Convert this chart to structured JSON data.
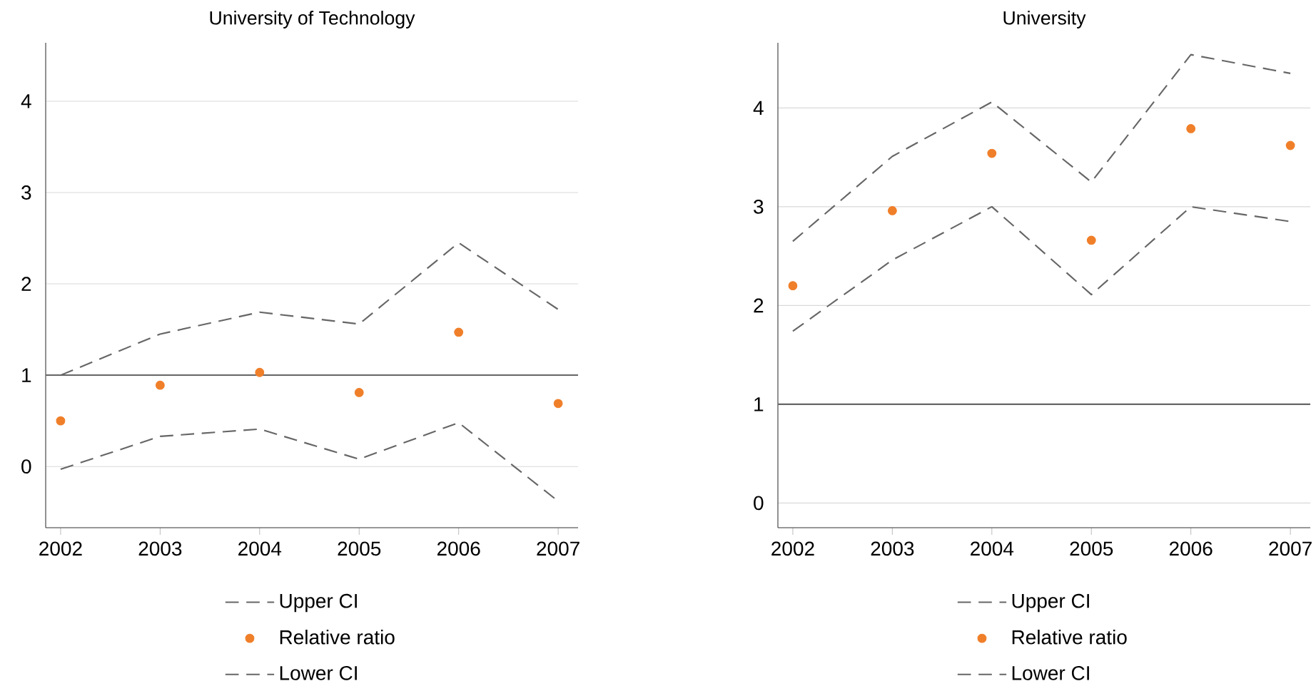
{
  "chart_data": [
    {
      "type": "line",
      "title": "University of Technology",
      "x": [
        2002,
        2003,
        2004,
        2005,
        2006,
        2007
      ],
      "xlim": [
        2001.85,
        2007.2
      ],
      "xticks": [
        2002,
        2003,
        2004,
        2005,
        2006,
        2007
      ],
      "ylim": [
        -0.67,
        4.64
      ],
      "yticks": [
        0,
        1,
        2,
        3,
        4
      ],
      "grid": "y",
      "legend": "bottom",
      "series": [
        {
          "name": "Upper CI",
          "color": "#666666",
          "line_style": "dashed",
          "marker": "none",
          "values": [
            1.0,
            1.45,
            1.69,
            1.56,
            2.45,
            1.72
          ]
        },
        {
          "name": "Relative ratio",
          "type": "scatter",
          "color": "#f07f2a",
          "marker": "circle",
          "values": [
            0.5,
            0.89,
            1.03,
            0.81,
            1.47,
            0.69
          ]
        },
        {
          "name": "Lower CI",
          "color": "#666666",
          "line_style": "dashed",
          "marker": "none",
          "values": [
            -0.03,
            0.33,
            0.41,
            0.08,
            0.48,
            -0.38
          ]
        }
      ],
      "ref_lines": [
        {
          "axis": "y",
          "value": 1,
          "color": "#666666"
        }
      ]
    },
    {
      "type": "line",
      "title": "University",
      "x": [
        2002,
        2003,
        2004,
        2005,
        2006,
        2007
      ],
      "xlim": [
        2001.85,
        2007.2
      ],
      "xticks": [
        2002,
        2003,
        2004,
        2005,
        2006,
        2007
      ],
      "ylim": [
        -0.25,
        4.66
      ],
      "yticks": [
        0,
        1,
        2,
        3,
        4
      ],
      "grid": "y",
      "legend": "bottom",
      "series": [
        {
          "name": "Upper CI",
          "color": "#666666",
          "line_style": "dashed",
          "marker": "none",
          "values": [
            2.65,
            3.51,
            4.06,
            3.25,
            4.54,
            4.35
          ]
        },
        {
          "name": "Relative ratio",
          "type": "scatter",
          "color": "#f07f2a",
          "marker": "circle",
          "values": [
            2.2,
            2.96,
            3.54,
            2.66,
            3.79,
            3.62
          ]
        },
        {
          "name": "Lower CI",
          "color": "#666666",
          "line_style": "dashed",
          "marker": "none",
          "values": [
            1.74,
            2.46,
            3.0,
            2.11,
            3.0,
            2.85
          ]
        }
      ],
      "ref_lines": [
        {
          "axis": "y",
          "value": 1,
          "color": "#666666"
        }
      ]
    }
  ]
}
